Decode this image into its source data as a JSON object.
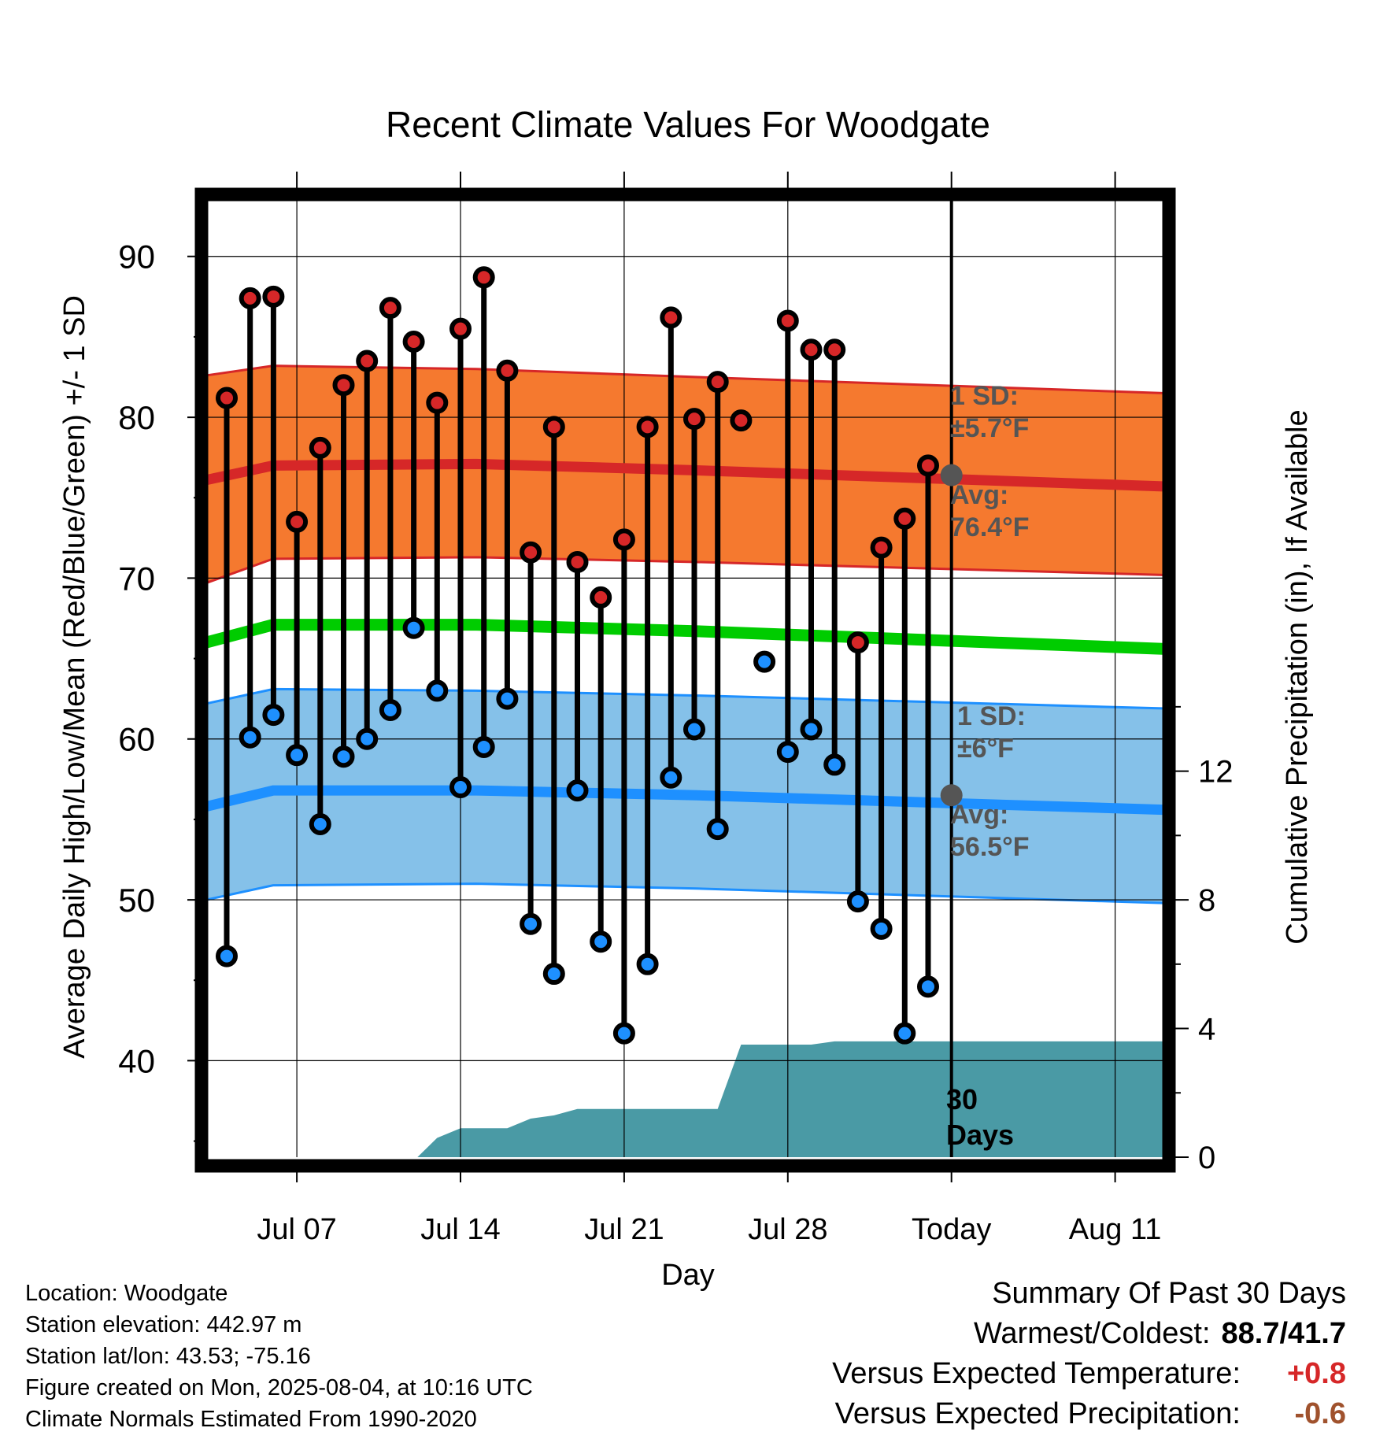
{
  "chart_data": {
    "type": "line",
    "title": "Recent Climate Values For Woodgate",
    "xlabel": "Day",
    "ylabel": "Average Daily High/Low/Mean (Red/Blue/Green) +/- 1 SD",
    "y2label": "Cumulative Precipitation (in), If Available",
    "ylim": [
      34,
      94
    ],
    "y2lim": [
      0,
      30
    ],
    "yticks": [
      40,
      50,
      60,
      70,
      80,
      90
    ],
    "y2ticks": [
      0,
      4,
      8,
      12
    ],
    "xticks": [
      "Jul 07",
      "Jul 14",
      "Jul 21",
      "Jul 28",
      "Today",
      "Aug 11"
    ],
    "dates": [
      "Jul 04",
      "Jul 05",
      "Jul 06",
      "Jul 07",
      "Jul 08",
      "Jul 09",
      "Jul 10",
      "Jul 11",
      "Jul 12",
      "Jul 13",
      "Jul 14",
      "Jul 15",
      "Jul 16",
      "Jul 17",
      "Jul 18",
      "Jul 19",
      "Jul 20",
      "Jul 21",
      "Jul 22",
      "Jul 23",
      "Jul 24",
      "Jul 25",
      "Jul 26",
      "Jul 27",
      "Jul 28",
      "Jul 29",
      "Jul 30",
      "Jul 31",
      "Aug 01",
      "Aug 02",
      "Aug 03"
    ],
    "series": [
      {
        "name": "High",
        "color": "#d62728",
        "values": [
          81.2,
          87.4,
          87.5,
          73.5,
          78.1,
          82.0,
          83.5,
          86.8,
          84.7,
          80.9,
          85.5,
          88.7,
          82.9,
          71.6,
          79.4,
          71.0,
          68.8,
          72.4,
          79.4,
          86.2,
          79.9,
          82.2,
          79.8,
          null,
          86.0,
          84.2,
          84.2,
          66.0,
          71.9,
          73.7,
          77.0
        ]
      },
      {
        "name": "Low",
        "color": "#1e90ff",
        "values": [
          46.5,
          60.1,
          61.5,
          59.0,
          54.7,
          58.9,
          60.0,
          61.8,
          66.9,
          63.0,
          57.0,
          59.5,
          62.5,
          48.5,
          45.4,
          56.8,
          47.4,
          41.7,
          46.0,
          57.6,
          60.6,
          54.4,
          null,
          64.8,
          59.2,
          60.6,
          58.4,
          49.9,
          48.2,
          41.7,
          44.6
        ]
      }
    ],
    "normals": {
      "high_avg": [
        76.1,
        77.0,
        77.1,
        76.7,
        75.7
      ],
      "high_upper": [
        82.6,
        83.2,
        83.0,
        82.5,
        81.5
      ],
      "high_lower": [
        69.7,
        71.2,
        71.3,
        71.0,
        70.2
      ],
      "low_avg": [
        55.8,
        56.8,
        56.8,
        56.5,
        55.6
      ],
      "low_upper": [
        62.2,
        63.1,
        63.0,
        62.7,
        61.9
      ],
      "low_lower": [
        50.0,
        50.9,
        51.0,
        50.7,
        49.8
      ],
      "mean_avg": [
        66.0,
        67.1,
        67.1,
        66.7,
        65.6
      ],
      "colors": {
        "high_band": "#f5792f",
        "high_line": "#d62728",
        "low_band": "#85c1e9",
        "low_line": "#1e90ff",
        "mean_line": "#00cc00"
      }
    },
    "precip_cumulative": [
      0,
      0,
      0,
      0,
      0,
      0,
      0,
      0,
      0,
      0.6,
      0.9,
      0.9,
      0.9,
      1.2,
      1.3,
      1.5,
      1.5,
      1.5,
      1.5,
      1.5,
      1.5,
      1.5,
      3.5,
      3.5,
      3.5,
      3.5,
      3.6,
      3.6,
      3.6,
      3.6,
      3.6
    ],
    "precip_color": "#4a9aa5",
    "annotations": {
      "high_sd": "1 SD:",
      "high_sd_value": "±5.7°F",
      "high_avg_label": "Avg:",
      "high_avg_value": "76.4°F",
      "low_sd": "1 SD:",
      "low_sd_value": "±6°F",
      "low_avg_label": "Avg:",
      "low_avg_value": "56.5°F",
      "days_count": "30",
      "days_label": "Days",
      "high_avg_today": 76.4,
      "low_avg_today": 56.5
    }
  },
  "footer": {
    "location": "Location: Woodgate",
    "elevation": "Station elevation: 442.97 m",
    "latlon": "Station lat/lon: 43.53; -75.16",
    "created": "Figure created on Mon, 2025-08-04, at 10:16 UTC",
    "normals": "Climate Normals Estimated From 1990-2020"
  },
  "summary": {
    "heading": "Summary Of Past 30 Days",
    "warm_cold_label": "Warmest/Coldest:",
    "warm_cold_value": "88.7/41.7",
    "temp_label": "Versus Expected Temperature:",
    "temp_value": "+0.8",
    "temp_color": "#d62728",
    "precip_label": "Versus Expected Precipitation:",
    "precip_value": "-0.6",
    "precip_color": "#a0522d"
  }
}
